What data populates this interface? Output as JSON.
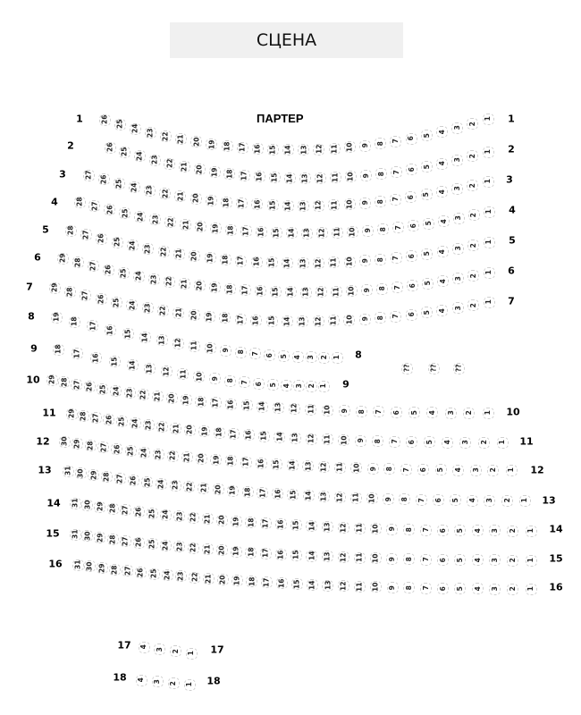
{
  "stage": {
    "label": "СЦЕНА"
  },
  "section": {
    "title": "ПАРТЕР"
  },
  "rows": [
    {
      "left_label": "1",
      "right_label": "1",
      "seat_count": 26
    },
    {
      "left_label": "2",
      "right_label": "2",
      "seat_count": 26
    },
    {
      "left_label": "3",
      "right_label": "3",
      "seat_count": 27
    },
    {
      "left_label": "4",
      "right_label": "4",
      "seat_count": 28
    },
    {
      "left_label": "5",
      "right_label": "5",
      "seat_count": 28
    },
    {
      "left_label": "6",
      "right_label": "6",
      "seat_count": 29
    },
    {
      "left_label": "7",
      "right_label": "7",
      "seat_count": 29
    },
    {
      "left_label": "8",
      "right_label": "8",
      "seat_count": 19
    },
    {
      "left_label": "9",
      "right_label": "9",
      "seat_count": 18
    },
    {
      "left_label": "10",
      "right_label": "10",
      "seat_count": 29
    },
    {
      "left_label": "11",
      "right_label": "11",
      "seat_count": 29
    },
    {
      "left_label": "12",
      "right_label": "12",
      "seat_count": 30
    },
    {
      "left_label": "13",
      "right_label": "13",
      "seat_count": 31
    },
    {
      "left_label": "14",
      "right_label": "14",
      "seat_count": 31
    },
    {
      "left_label": "15",
      "right_label": "15",
      "seat_count": 31
    },
    {
      "left_label": "16",
      "right_label": "16",
      "seat_count": 31
    },
    {
      "left_label": "17",
      "right_label": "17",
      "seat_count": 4
    },
    {
      "left_label": "18",
      "right_label": "18",
      "seat_count": 4
    }
  ],
  "extra_seats": [
    "??",
    "??",
    "??"
  ],
  "colors": {
    "stage_bg": "#f0f0f0",
    "seat_border": "#cfcfcf"
  }
}
